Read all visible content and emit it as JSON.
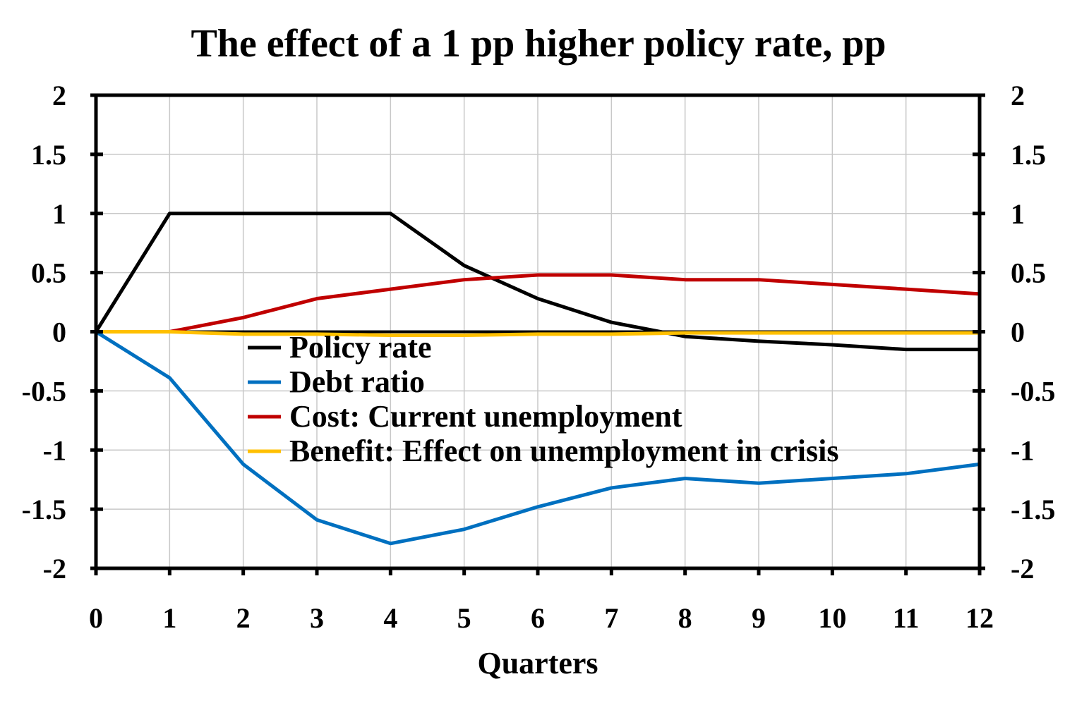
{
  "chart_data": {
    "type": "line",
    "title": "The effect of a 1 pp higher policy rate, pp",
    "xlabel": "Quarters",
    "ylabel": "",
    "x": [
      0,
      1,
      2,
      3,
      4,
      5,
      6,
      7,
      8,
      9,
      10,
      11,
      12
    ],
    "xlim": [
      0,
      12
    ],
    "ylim": [
      -2,
      2
    ],
    "y_ticks": [
      2,
      1.5,
      1,
      0.5,
      0,
      -0.5,
      -1,
      -1.5,
      -2
    ],
    "y_tick_labels": [
      "2",
      "1.5",
      "1",
      "0.5",
      "0",
      "-0.5",
      "-1",
      "-1.5",
      "-2"
    ],
    "x_tick_labels": [
      "0",
      "1",
      "2",
      "3",
      "4",
      "5",
      "6",
      "7",
      "8",
      "9",
      "10",
      "11",
      "12"
    ],
    "secondary_y_axis": true,
    "grid": true,
    "legend_position": "center-left inside plot",
    "series": [
      {
        "name": "Policy rate",
        "color": "#000000",
        "values": [
          0,
          1.0,
          1.0,
          1.0,
          1.0,
          0.56,
          0.28,
          0.08,
          -0.04,
          -0.08,
          -0.11,
          -0.15,
          -0.15
        ]
      },
      {
        "name": "Debt ratio",
        "color": "#0070c0",
        "values": [
          0,
          -0.39,
          -1.12,
          -1.59,
          -1.79,
          -1.67,
          -1.48,
          -1.32,
          -1.24,
          -1.28,
          -1.24,
          -1.2,
          -1.12
        ]
      },
      {
        "name": "Cost: Current unemployment",
        "color": "#c00000",
        "values": [
          0,
          0,
          0.12,
          0.28,
          0.36,
          0.44,
          0.48,
          0.48,
          0.44,
          0.44,
          0.4,
          0.36,
          0.32
        ]
      },
      {
        "name": "Benefit: Effect on unemployment in crisis",
        "color": "#ffc000",
        "values": [
          0,
          0,
          -0.02,
          -0.02,
          -0.03,
          -0.03,
          -0.02,
          -0.02,
          -0.01,
          -0.01,
          -0.01,
          -0.01,
          -0.01
        ]
      }
    ]
  }
}
